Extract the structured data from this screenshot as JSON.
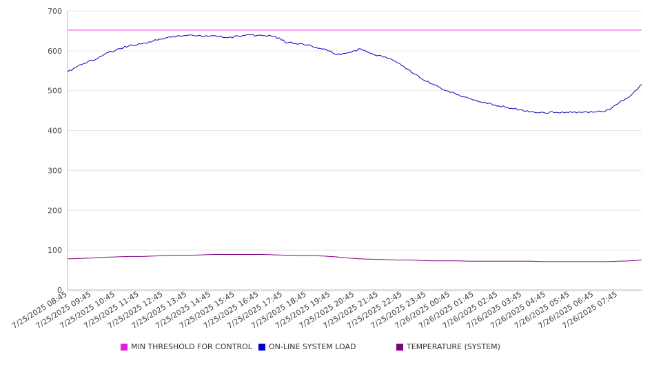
{
  "chart_data": {
    "type": "line",
    "title": "",
    "xlabel": "",
    "ylabel": "",
    "ylim": [
      0,
      700
    ],
    "yticks": [
      0,
      100,
      200,
      300,
      400,
      500,
      600,
      700
    ],
    "grid": true,
    "legend_placement": "bottom",
    "x_tick_labels": [
      "7/25/2025 08:45",
      "7/25/2025 09:45",
      "7/25/2025 10:45",
      "7/25/2025 11:45",
      "7/25/2025 12:45",
      "7/25/2025 13:45",
      "7/25/2025 14:45",
      "7/25/2025 15:45",
      "7/25/2025 16:45",
      "7/25/2025 17:45",
      "7/25/2025 18:45",
      "7/25/2025 19:45",
      "7/25/2025 20:45",
      "7/25/2025 21:45",
      "7/25/2025 22:45",
      "7/25/2025 23:45",
      "7/26/2025 00:45",
      "7/26/2025 01:45",
      "7/26/2025 02:45",
      "7/26/2025 03:45",
      "7/26/2025 04:45",
      "7/26/2025 05:45",
      "7/26/2025 06:45",
      "7/26/2025 07:45"
    ],
    "x": [
      "7/25/2025 08:45",
      "7/25/2025 09:15",
      "7/25/2025 09:45",
      "7/25/2025 10:15",
      "7/25/2025 10:45",
      "7/25/2025 11:15",
      "7/25/2025 11:45",
      "7/25/2025 12:15",
      "7/25/2025 12:45",
      "7/25/2025 13:15",
      "7/25/2025 13:45",
      "7/25/2025 14:15",
      "7/25/2025 14:45",
      "7/25/2025 15:15",
      "7/25/2025 15:45",
      "7/25/2025 16:15",
      "7/25/2025 16:45",
      "7/25/2025 17:15",
      "7/25/2025 17:45",
      "7/25/2025 18:15",
      "7/25/2025 18:45",
      "7/25/2025 19:15",
      "7/25/2025 19:45",
      "7/25/2025 20:15",
      "7/25/2025 20:45",
      "7/25/2025 21:15",
      "7/25/2025 21:45",
      "7/25/2025 22:15",
      "7/25/2025 22:45",
      "7/25/2025 23:15",
      "7/25/2025 23:45",
      "7/26/2025 00:15",
      "7/26/2025 00:45",
      "7/26/2025 01:15",
      "7/26/2025 01:45",
      "7/26/2025 02:15",
      "7/26/2025 02:45",
      "7/26/2025 03:15",
      "7/26/2025 03:45",
      "7/26/2025 04:15",
      "7/26/2025 04:45",
      "7/26/2025 05:15",
      "7/26/2025 05:45",
      "7/26/2025 06:15",
      "7/26/2025 06:45",
      "7/26/2025 07:15",
      "7/26/2025 07:45",
      "7/26/2025 08:15"
    ],
    "series": [
      {
        "name": "MIN THRESHOLD FOR CONTROL",
        "color": "#e01ee0",
        "values": [
          652,
          652,
          652,
          652,
          652,
          652,
          652,
          652,
          652,
          652,
          652,
          652,
          652,
          652,
          652,
          652,
          652,
          652,
          652,
          652,
          652,
          652,
          652,
          652,
          652,
          652,
          652,
          652,
          652,
          652,
          652,
          652,
          652,
          652,
          652,
          652,
          652,
          652,
          652,
          652,
          652,
          652,
          652,
          652,
          652,
          652,
          652,
          652
        ]
      },
      {
        "name": "ON-LINE SYSTEM LOAD",
        "color": "#0000cc",
        "values": [
          547,
          565,
          576,
          591,
          603,
          612,
          617,
          625,
          632,
          638,
          640,
          636,
          638,
          633,
          637,
          640,
          638,
          636,
          620,
          618,
          612,
          605,
          590,
          596,
          605,
          592,
          585,
          570,
          552,
          530,
          515,
          500,
          490,
          480,
          470,
          464,
          458,
          452,
          448,
          445,
          446,
          445,
          446,
          446,
          448,
          466,
          485,
          516
        ]
      },
      {
        "name": "TEMPERATURE (SYSTEM)",
        "color": "#800080",
        "values": [
          78,
          79,
          80,
          82,
          83,
          84,
          84,
          85,
          86,
          87,
          87,
          88,
          89,
          89,
          89,
          89,
          89,
          88,
          87,
          86,
          86,
          85,
          83,
          80,
          78,
          77,
          76,
          75,
          75,
          74,
          73,
          73,
          73,
          72,
          72,
          72,
          72,
          72,
          72,
          71,
          71,
          71,
          71,
          71,
          71,
          72,
          73,
          75
        ]
      }
    ]
  }
}
